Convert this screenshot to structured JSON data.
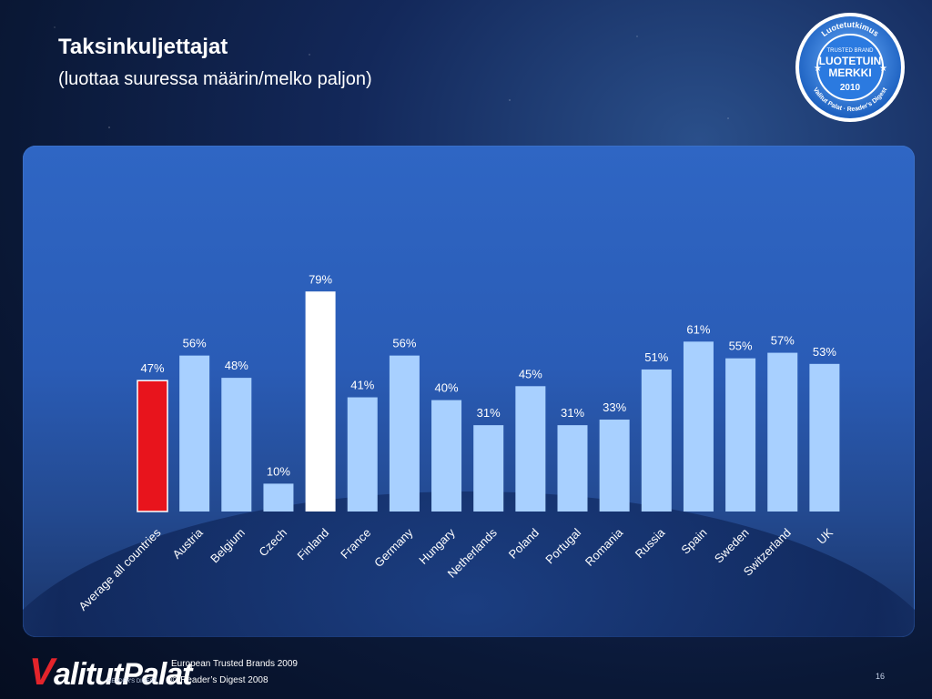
{
  "slide": {
    "title": "Taksinkuljettajat",
    "subtitle": "(luottaa suuressa määrin/melko paljon)"
  },
  "badge": {
    "arc_top": "Luotetutkimus",
    "line1": "TRUSTED BRAND",
    "line2": "LUOTETUIN",
    "line3": "MERKKI",
    "year": "2010",
    "arc_bottom": "Valitut Palat · Reader's Digest"
  },
  "footer": {
    "logo_initial": "V",
    "logo_rest": "alitutPalat",
    "logo_sub": "READER'S DIGEST",
    "source": "European Trusted Brands 2009",
    "copyright": "© Reader’s Digest 2008",
    "page_number": "16"
  },
  "colors": {
    "bar_default": "#a8d0ff",
    "bar_average": "#e8141c",
    "bar_highlight": "#ffffff",
    "label_text": "#ffffff"
  },
  "chart_data": {
    "type": "bar",
    "title": "Taksinkuljettajat",
    "categories": [
      "Average all countries",
      "Austria",
      "Belgium",
      "Czech",
      "Finland",
      "France",
      "Germany",
      "Hungary",
      "Netherlands",
      "Poland",
      "Portugal",
      "Romania",
      "Russia",
      "Spain",
      "Sweden",
      "Switzerland",
      "UK"
    ],
    "values": [
      47,
      56,
      48,
      10,
      79,
      41,
      56,
      40,
      31,
      45,
      31,
      33,
      51,
      61,
      55,
      57,
      53
    ],
    "data_labels": [
      "47%",
      "56%",
      "48%",
      "10%",
      "79%",
      "41%",
      "56%",
      "40%",
      "31%",
      "45%",
      "31%",
      "33%",
      "51%",
      "61%",
      "55%",
      "57%",
      "53%"
    ],
    "highlight": {
      "Average all countries": "average",
      "Finland": "highlight"
    },
    "ylim": [
      0,
      100
    ],
    "grid": false,
    "legend": "none"
  }
}
